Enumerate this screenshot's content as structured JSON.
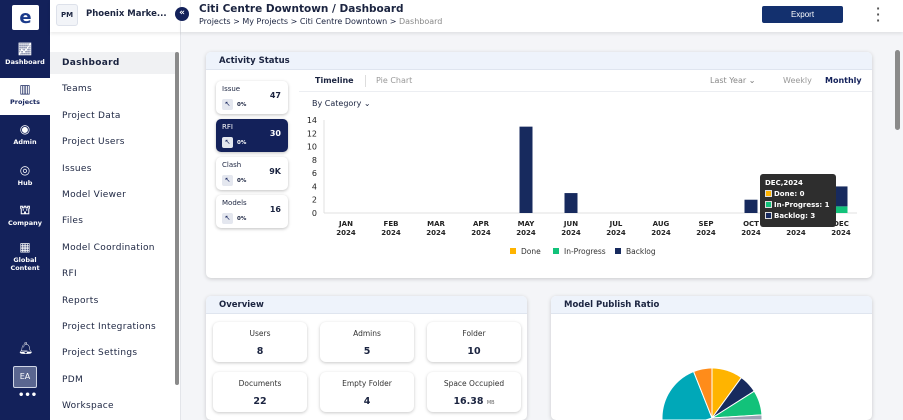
{
  "rail": {
    "items": [
      {
        "label": "Dashboard",
        "icon": "chart-icon"
      },
      {
        "label": "Projects",
        "icon": "buildings-icon",
        "active": true
      },
      {
        "label": "Admin",
        "icon": "admin-icon"
      },
      {
        "label": "Hub",
        "icon": "hub-icon"
      },
      {
        "label": "Company",
        "icon": "company-icon"
      },
      {
        "label": "Global Content",
        "icon": "global-content-icon"
      }
    ],
    "avatar": "EA",
    "more": "•••"
  },
  "sidebar": {
    "project_initials": "PM",
    "project_name": "Phoenix Marke...",
    "items": [
      "Dashboard",
      "Teams",
      "Project Data",
      "Project Users",
      "Issues",
      "Model Viewer",
      "Files",
      "Model Coordination",
      "RFI",
      "Reports",
      "Project Integrations",
      "Project Settings",
      "PDM",
      "Workspace"
    ],
    "active": "Dashboard"
  },
  "header": {
    "title": "Citi Centre Downtown / Dashboard",
    "breadcrumb": [
      "Projects",
      "My Projects",
      "Citi Centre Downtown",
      "Dashboard"
    ],
    "export_label": "Export"
  },
  "activity": {
    "title": "Activity Status",
    "cards": [
      {
        "label": "Issue",
        "value": "47",
        "pct": "0%"
      },
      {
        "label": "RFI",
        "value": "30",
        "pct": "0%",
        "active": true
      },
      {
        "label": "Clash",
        "value": "9K",
        "pct": "0%"
      },
      {
        "label": "Models",
        "value": "16",
        "pct": "0%"
      }
    ],
    "tabs": [
      "Timeline",
      "Pie Chart"
    ],
    "filter": "By Category",
    "range": "Last Year",
    "periods": [
      "Weekly",
      "Monthly"
    ],
    "active_period": "Monthly",
    "tooltip": {
      "title": "DEC,2024",
      "lines": [
        "Done: 0",
        "In-Progress: 1",
        "Backlog: 3"
      ]
    }
  },
  "chart_data": [
    {
      "type": "bar",
      "stacked": true,
      "categories": [
        "JAN 2024",
        "FEB 2024",
        "MAR 2024",
        "APR 2024",
        "MAY 2024",
        "JUN 2024",
        "JUL 2024",
        "AUG 2024",
        "SEP 2024",
        "OCT 2024",
        "NOV 2024",
        "DEC 2024"
      ],
      "series": [
        {
          "name": "Done",
          "color": "#ffb400",
          "values": [
            0,
            0,
            0,
            0,
            0,
            0,
            0,
            0,
            0,
            0,
            0,
            0
          ]
        },
        {
          "name": "In-Progress",
          "color": "#12c27a",
          "values": [
            0,
            0,
            0,
            0,
            0,
            0,
            0,
            0,
            0,
            0,
            0,
            1
          ]
        },
        {
          "name": "Backlog",
          "color": "#172a5e",
          "values": [
            0,
            0,
            0,
            0,
            13,
            3,
            0,
            0,
            0,
            2,
            0,
            3
          ]
        }
      ],
      "yticks": [
        0,
        2,
        4,
        6,
        8,
        10,
        12,
        14
      ],
      "ylim": [
        0,
        14
      ],
      "legend": "bottom"
    },
    {
      "type": "pie",
      "title": "Model Publish Ratio",
      "slices": [
        {
          "color": "#ffb400",
          "value": 10
        },
        {
          "color": "#172a5e",
          "value": 6
        },
        {
          "color": "#12c27a",
          "value": 8
        },
        {
          "color": "#9aa3b5",
          "value": 46
        },
        {
          "color": "#00a8b8",
          "value": 24
        },
        {
          "color": "#ff8c1a",
          "value": 6
        }
      ]
    }
  ],
  "overview": {
    "title": "Overview",
    "items": [
      {
        "label": "Users",
        "value": "8"
      },
      {
        "label": "Admins",
        "value": "5"
      },
      {
        "label": "Folder",
        "value": "10"
      },
      {
        "label": "Documents",
        "value": "22"
      },
      {
        "label": "Empty Folder",
        "value": "4"
      },
      {
        "label": "Space Occupied",
        "value": "16.38",
        "unit": "MB"
      }
    ]
  },
  "publish": {
    "title": "Model Publish Ratio"
  }
}
